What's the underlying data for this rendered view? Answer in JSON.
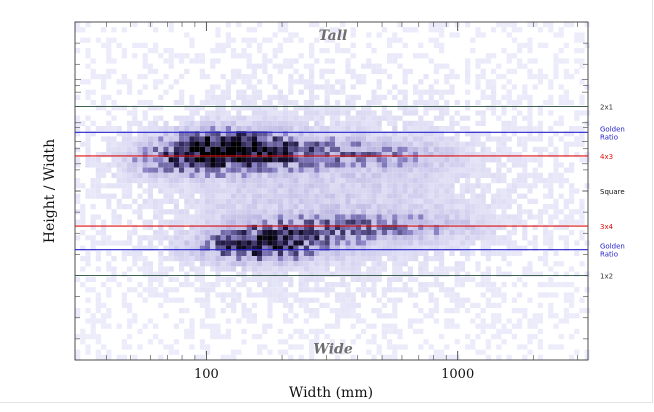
{
  "chart_data": {
    "type": "heatmap",
    "xlabel": "Width (mm)",
    "ylabel": "Height / Width",
    "x_scale": "log",
    "y_scale": "log",
    "xlim": [
      30,
      3300
    ],
    "ylim": [
      0.25,
      4
    ],
    "x_ticks": [
      {
        "value": 100,
        "label": "100"
      },
      {
        "value": 1000,
        "label": "1000"
      }
    ],
    "region_labels": [
      {
        "text": "Tall",
        "ratio": 3.6
      },
      {
        "text": "Wide",
        "ratio": 0.275
      }
    ],
    "reference_lines": [
      {
        "name": "2x1",
        "labels": [
          "2x1"
        ],
        "ratio": 2.0,
        "color": "#3f5f4f"
      },
      {
        "name": "Golden Ratio",
        "labels": [
          "Golden",
          "Ratio"
        ],
        "ratio": 1.618,
        "color": "#2323cc"
      },
      {
        "name": "4x3",
        "labels": [
          "4x3"
        ],
        "ratio": 1.333,
        "color": "#dd1111"
      },
      {
        "name": "Square",
        "labels": [
          "Square"
        ],
        "ratio": 1.0,
        "color": null
      },
      {
        "name": "3x4",
        "labels": [
          "3x4"
        ],
        "ratio": 0.75,
        "color": "#dd1111"
      },
      {
        "name": "Golden Ratio",
        "labels": [
          "Golden",
          "Ratio"
        ],
        "ratio": 0.618,
        "color": "#2323cc"
      },
      {
        "name": "1x2",
        "labels": [
          "1x2"
        ],
        "ratio": 0.5,
        "color": "#3f5f4f"
      }
    ],
    "label_colors": {
      "2x1": "#333333",
      "Golden Ratio": "#2323cc",
      "4x3": "#dd1111",
      "Square": "#111111",
      "3x4": "#dd1111",
      "1x2": "#333333"
    },
    "density_clusters": [
      {
        "x": 115,
        "ratio": 1.5,
        "weight": 1.0
      },
      {
        "x": 150,
        "ratio": 1.35,
        "weight": 0.8
      },
      {
        "x": 300,
        "ratio": 1.36,
        "weight": 0.5
      },
      {
        "x": 600,
        "ratio": 1.33,
        "weight": 0.3
      },
      {
        "x": 85,
        "ratio": 1.28,
        "weight": 0.9
      },
      {
        "x": 160,
        "ratio": 0.63,
        "weight": 1.0
      },
      {
        "x": 200,
        "ratio": 0.7,
        "weight": 0.7
      },
      {
        "x": 400,
        "ratio": 0.74,
        "weight": 0.5
      },
      {
        "x": 800,
        "ratio": 0.75,
        "weight": 0.3
      }
    ],
    "palette": {
      "low": "#ececfb",
      "mid": "#8f88cc",
      "high": "#1e1440",
      "peak": "#000000"
    }
  }
}
